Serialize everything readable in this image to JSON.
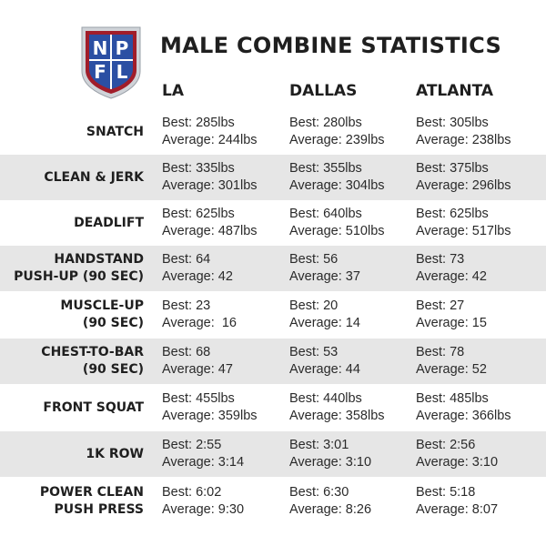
{
  "title": "MALE COMBINE STATISTICS",
  "logo": {
    "icon": "npfl-shield-logo",
    "letters": [
      "N",
      "P",
      "F",
      "L"
    ],
    "colors": {
      "blue": "#2b4fa3",
      "red": "#a11d2a",
      "silver": "#cfd3d8"
    }
  },
  "cities": [
    "LA",
    "DALLAS",
    "ATLANTA"
  ],
  "rows": [
    {
      "label": [
        "SNATCH"
      ],
      "shaded": false,
      "cells": [
        {
          "best": "Best: 285lbs",
          "avg": "Average: 244lbs"
        },
        {
          "best": "Best: 280lbs",
          "avg": "Average: 239lbs"
        },
        {
          "best": "Best: 305lbs",
          "avg": "Average: 238lbs"
        }
      ]
    },
    {
      "label": [
        "CLEAN & JERK"
      ],
      "shaded": true,
      "cells": [
        {
          "best": "Best: 335lbs",
          "avg": "Average: 301lbs"
        },
        {
          "best": "Best: 355lbs",
          "avg": "Average: 304lbs"
        },
        {
          "best": "Best: 375lbs",
          "avg": "Average: 296lbs"
        }
      ]
    },
    {
      "label": [
        "DEADLIFT"
      ],
      "shaded": false,
      "cells": [
        {
          "best": "Best: 625lbs",
          "avg": "Average: 487lbs"
        },
        {
          "best": "Best: 640lbs",
          "avg": "Average: 510lbs"
        },
        {
          "best": "Best: 625lbs",
          "avg": "Average: 517lbs"
        }
      ]
    },
    {
      "label": [
        "HANDSTAND",
        "PUSH-UP (90 SEC)"
      ],
      "shaded": true,
      "cells": [
        {
          "best": "Best: 64",
          "avg": "Average: 42"
        },
        {
          "best": "Best: 56",
          "avg": "Average: 37"
        },
        {
          "best": "Best: 73",
          "avg": "Average: 42"
        }
      ]
    },
    {
      "label": [
        "MUSCLE-UP",
        "(90 SEC)"
      ],
      "shaded": false,
      "cells": [
        {
          "best": "Best: 23",
          "avg": "Average:  16"
        },
        {
          "best": "Best: 20",
          "avg": "Average: 14"
        },
        {
          "best": "Best: 27",
          "avg": "Average: 15"
        }
      ]
    },
    {
      "label": [
        "CHEST-TO-BAR",
        "(90 SEC)"
      ],
      "shaded": true,
      "cells": [
        {
          "best": "Best: 68",
          "avg": "Average: 47"
        },
        {
          "best": "Best: 53",
          "avg": "Average: 44"
        },
        {
          "best": "Best: 78",
          "avg": "Average: 52"
        }
      ]
    },
    {
      "label": [
        "FRONT SQUAT"
      ],
      "shaded": false,
      "cells": [
        {
          "best": "Best: 455lbs",
          "avg": "Average: 359lbs"
        },
        {
          "best": "Best: 440lbs",
          "avg": "Average: 358lbs"
        },
        {
          "best": "Best: 485lbs",
          "avg": "Average: 366lbs"
        }
      ]
    },
    {
      "label": [
        "1K ROW"
      ],
      "shaded": true,
      "cells": [
        {
          "best": "Best: 2:55",
          "avg": "Average: 3:14"
        },
        {
          "best": "Best: 3:01",
          "avg": "Average: 3:10"
        },
        {
          "best": "Best: 2:56",
          "avg": "Average: 3:10"
        }
      ]
    },
    {
      "label": [
        "POWER CLEAN",
        "PUSH PRESS"
      ],
      "shaded": false,
      "cells": [
        {
          "best": "Best: 6:02",
          "avg": "Average: 9:30"
        },
        {
          "best": "Best: 6:30",
          "avg": "Average: 8:26"
        },
        {
          "best": "Best: 5:18",
          "avg": "Average: 8:07"
        }
      ]
    }
  ]
}
